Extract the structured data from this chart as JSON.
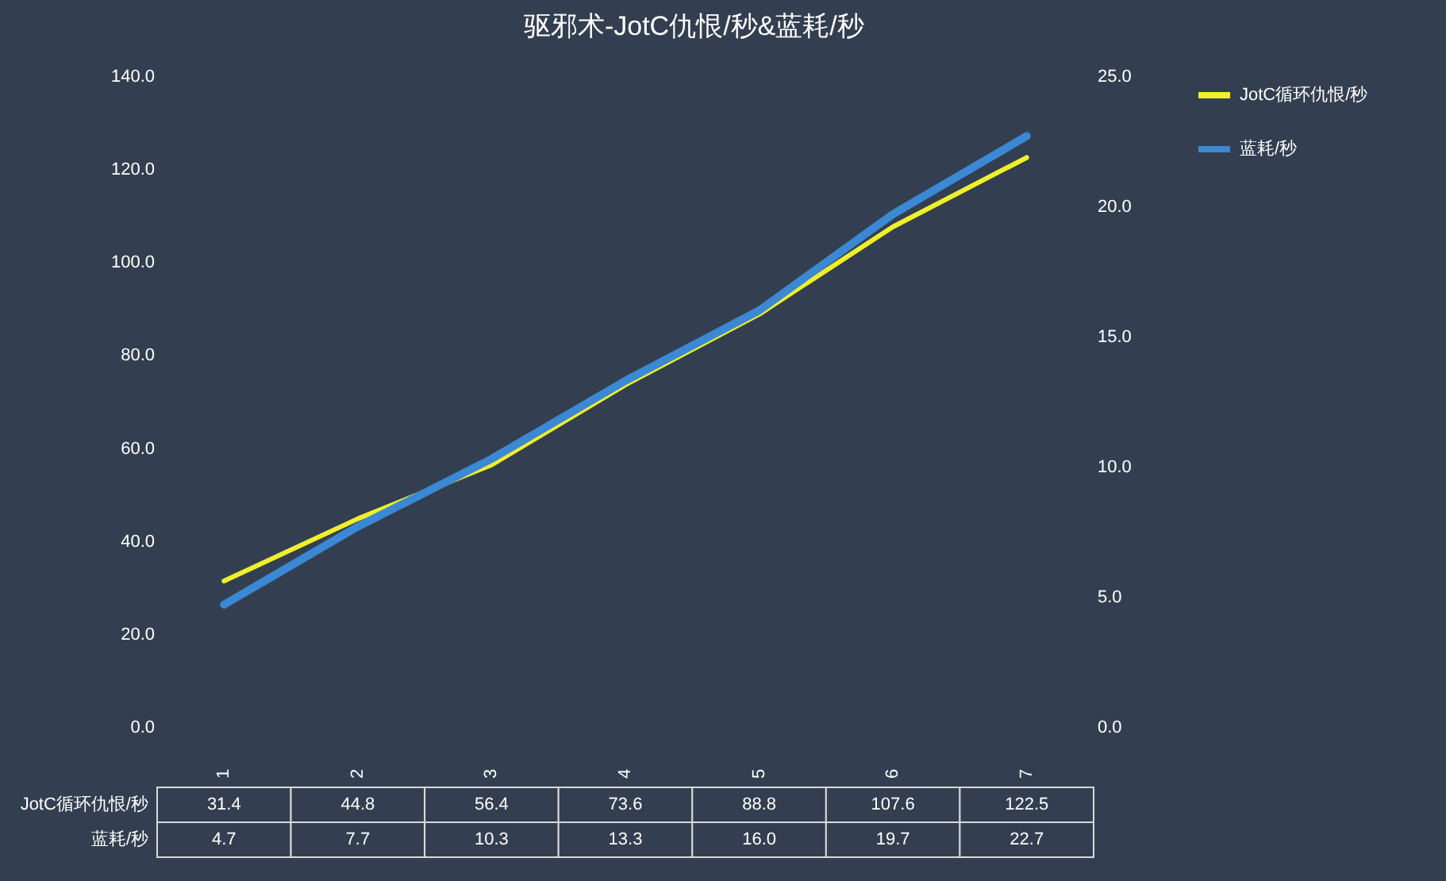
{
  "chart_data": {
    "type": "line",
    "title": "驱邪术-JotC仇恨/秒&蓝耗/秒",
    "categories": [
      "1",
      "2",
      "3",
      "4",
      "5",
      "6",
      "7"
    ],
    "series": [
      {
        "name": "JotC循环仇恨/秒",
        "color": "#f0f02a",
        "values": [
          31.4,
          44.8,
          56.4,
          73.6,
          88.8,
          107.6,
          122.5
        ],
        "value_labels": [
          "31.4",
          "44.8",
          "56.4",
          "73.6",
          "88.8",
          "107.6",
          "122.5"
        ]
      },
      {
        "name": "蓝耗/秒",
        "color": "#3b88d4",
        "axis": "y2",
        "values": [
          4.7,
          7.7,
          10.3,
          13.3,
          16.0,
          19.7,
          22.7
        ],
        "value_labels": [
          "4.7",
          "7.7",
          "10.3",
          "13.3",
          "16.0",
          "19.7",
          "22.7"
        ]
      }
    ],
    "ylim": [
      0,
      140
    ],
    "yticks": [
      {
        "value": 0,
        "label": "0.0"
      },
      {
        "value": 20,
        "label": "20.0"
      },
      {
        "value": 40,
        "label": "40.0"
      },
      {
        "value": 60,
        "label": "60.0"
      },
      {
        "value": 80,
        "label": "80.0"
      },
      {
        "value": 100,
        "label": "100.0"
      },
      {
        "value": 120,
        "label": "120.0"
      },
      {
        "value": 140,
        "label": "140.0"
      }
    ],
    "y2lim": [
      0,
      25
    ],
    "y2ticks": [
      {
        "value": 0,
        "label": "0.0"
      },
      {
        "value": 5,
        "label": "5.0"
      },
      {
        "value": 10,
        "label": "10.0"
      },
      {
        "value": 15,
        "label": "15.0"
      },
      {
        "value": 20,
        "label": "20.0"
      },
      {
        "value": 25,
        "label": "25.0"
      }
    ],
    "legend": "right"
  }
}
